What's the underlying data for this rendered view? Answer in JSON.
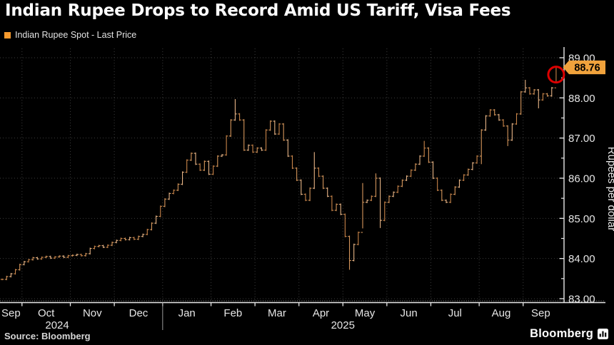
{
  "header": {
    "title": "Indian Rupee Drops to Record Amid US Tariff, Visa Fees"
  },
  "legend": {
    "label": "Indian Rupee Spot - Last Price",
    "swatch_color": "#f79a2d"
  },
  "footer": {
    "source": "Source: Bloomberg",
    "brand": "Bloomberg"
  },
  "chart_data": {
    "type": "ohlc",
    "title": "Indian Rupee Spot - Last Price",
    "xlabel": "",
    "ylabel": "Rupees per dollar",
    "ylim": [
      82.9,
      89.25
    ],
    "grid": true,
    "legend_position": "top-left",
    "yticks": [
      83,
      84,
      85,
      86,
      87,
      88,
      89
    ],
    "ytick_labels": [
      "83.00",
      "84.00",
      "85.00",
      "86.00",
      "87.00",
      "88.00",
      "89.00"
    ],
    "x_months": [
      {
        "label": "Sep",
        "points": 5
      },
      {
        "label": "Oct",
        "points": 11
      },
      {
        "label": "Nov",
        "points": 10
      },
      {
        "label": "Dec",
        "points": 11
      },
      {
        "label": "Jan",
        "points": 11
      },
      {
        "label": "Feb",
        "points": 10
      },
      {
        "label": "Mar",
        "points": 10
      },
      {
        "label": "Apr",
        "points": 10
      },
      {
        "label": "May",
        "points": 10
      },
      {
        "label": "Jun",
        "points": 10
      },
      {
        "label": "Jul",
        "points": 11
      },
      {
        "label": "Aug",
        "points": 10
      },
      {
        "label": "Sep",
        "points": 8
      }
    ],
    "years": [
      {
        "label": "2024",
        "month_start": 0,
        "month_end": 3
      },
      {
        "label": "2025",
        "month_start": 4,
        "month_end": 12
      }
    ],
    "closes": [
      83.48,
      83.55,
      83.62,
      83.72,
      83.85,
      83.92,
      83.97,
      84.02,
      83.99,
      84.03,
      84.05,
      84.01,
      84.04,
      84.06,
      84.03,
      84.07,
      84.08,
      84.1,
      84.07,
      84.12,
      84.25,
      84.3,
      84.32,
      84.28,
      84.33,
      84.4,
      84.45,
      84.5,
      84.47,
      84.52,
      84.48,
      84.55,
      84.6,
      84.72,
      84.88,
      85.05,
      85.3,
      85.48,
      85.62,
      85.7,
      85.85,
      86.15,
      86.45,
      86.62,
      86.35,
      86.2,
      86.42,
      86.1,
      86.3,
      86.55,
      86.58,
      87.05,
      87.45,
      87.6,
      87.45,
      86.7,
      86.82,
      86.65,
      86.75,
      86.7,
      87.2,
      87.42,
      87.1,
      87.35,
      86.95,
      86.55,
      86.25,
      85.95,
      85.6,
      85.45,
      85.75,
      86.25,
      86.05,
      85.75,
      85.55,
      85.2,
      85.35,
      85.1,
      84.55,
      83.95,
      84.35,
      84.65,
      85.4,
      85.45,
      85.55,
      86.0,
      84.95,
      85.4,
      85.55,
      85.65,
      85.8,
      85.95,
      86.05,
      86.2,
      86.35,
      86.55,
      86.75,
      86.4,
      86.0,
      85.7,
      85.45,
      85.4,
      85.6,
      85.78,
      85.95,
      86.08,
      86.22,
      86.38,
      86.55,
      87.2,
      87.55,
      87.7,
      87.58,
      87.45,
      87.3,
      86.95,
      87.35,
      87.6,
      88.15,
      88.25,
      88.1,
      88.2,
      87.95,
      88.1,
      88.05,
      88.25,
      88.76
    ],
    "spikes": [
      {
        "i": 53,
        "h": 87.97
      },
      {
        "i": 71,
        "h": 86.65
      },
      {
        "i": 79,
        "l": 83.72
      },
      {
        "i": 82,
        "h": 85.88,
        "l": 84.75
      },
      {
        "i": 85,
        "h": 86.12
      },
      {
        "i": 86,
        "l": 84.76
      },
      {
        "i": 96,
        "h": 86.93
      },
      {
        "i": 109,
        "l": 86.35
      },
      {
        "i": 115,
        "l": 86.8
      },
      {
        "i": 119,
        "h": 88.45
      },
      {
        "i": 122,
        "l": 87.74
      },
      {
        "i": 126,
        "l": 88.38
      }
    ],
    "last_price": {
      "text": "88.76",
      "value": 88.76,
      "bg": "#f0a23c",
      "text_color": "#000000"
    },
    "annotation_circle": {
      "color": "#dd0000",
      "index": 126,
      "at_value": 88.58
    },
    "colors": {
      "bar": "#d6975c",
      "bar_dim": "#c9854a",
      "bar_bright": "#e8b586",
      "grid": "#3b3b3b",
      "axis": "#e8e8e8",
      "tick_label": "#e6e6e6",
      "year_separator": "#9a9a9a"
    }
  }
}
